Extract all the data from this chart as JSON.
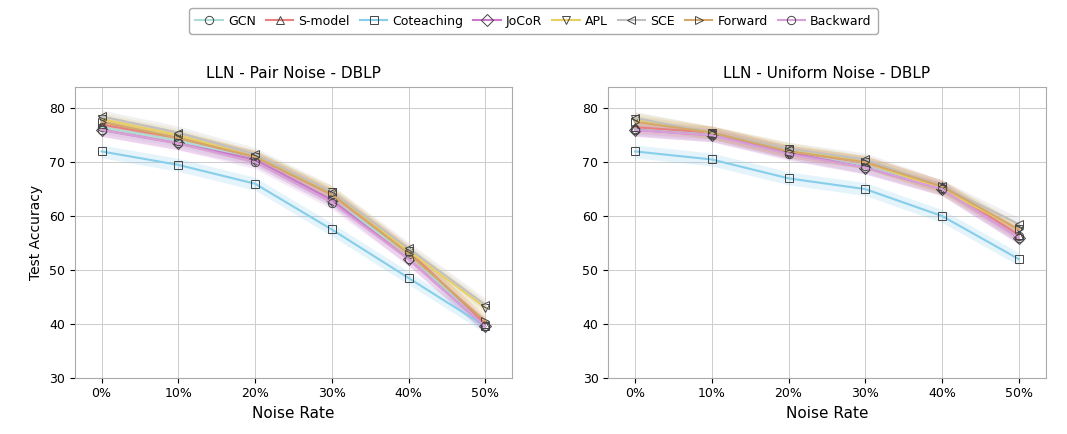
{
  "title_left": "LLN - Pair Noise - DBLP",
  "title_right": "LLN - Uniform Noise - DBLP",
  "xlabel": "Noise Rate",
  "ylabel": "Test Accuracy",
  "x_ticks": [
    "0%",
    "10%",
    "20%",
    "30%",
    "40%",
    "50%"
  ],
  "x_vals": [
    0,
    1,
    2,
    3,
    4,
    5
  ],
  "ylim": [
    30,
    84
  ],
  "yticks": [
    30,
    40,
    50,
    60,
    70,
    80
  ],
  "series": [
    {
      "name": "GCN",
      "color": "#aaded4",
      "marker": "o",
      "left": [
        76.5,
        74.0,
        70.5,
        63.0,
        53.0,
        39.5
      ],
      "right": [
        76.2,
        75.2,
        71.8,
        69.2,
        65.2,
        56.2
      ]
    },
    {
      "name": "S-model",
      "color": "#e88080",
      "marker": "^",
      "left": [
        77.0,
        74.5,
        71.0,
        64.0,
        53.5,
        40.0
      ],
      "right": [
        76.5,
        75.5,
        72.0,
        70.0,
        65.5,
        56.5
      ]
    },
    {
      "name": "Coteaching",
      "color": "#87ceeb",
      "marker": "s",
      "left": [
        72.0,
        69.5,
        66.0,
        57.5,
        48.5,
        39.5
      ],
      "right": [
        72.0,
        70.5,
        67.0,
        65.0,
        60.0,
        52.0
      ]
    },
    {
      "name": "JoCoR",
      "color": "#cc77cc",
      "marker": "D",
      "left": [
        76.0,
        73.5,
        70.5,
        63.0,
        52.0,
        39.5
      ],
      "right": [
        76.0,
        75.0,
        71.8,
        69.0,
        65.0,
        56.0
      ]
    },
    {
      "name": "APL",
      "color": "#e8d060",
      "marker": "v",
      "left": [
        78.0,
        75.0,
        71.0,
        64.5,
        53.5,
        43.0
      ],
      "right": [
        78.0,
        75.5,
        72.5,
        70.0,
        65.0,
        57.5
      ]
    },
    {
      "name": "SCE",
      "color": "#c0c0c0",
      "marker": "<",
      "left": [
        78.5,
        75.5,
        71.5,
        64.5,
        54.0,
        43.5
      ],
      "right": [
        78.2,
        75.5,
        72.5,
        70.5,
        65.5,
        58.5
      ]
    },
    {
      "name": "Forward",
      "color": "#d4a868",
      "marker": ">",
      "left": [
        77.5,
        74.5,
        71.0,
        64.0,
        53.0,
        40.5
      ],
      "right": [
        77.5,
        75.5,
        72.0,
        70.0,
        65.5,
        57.5
      ]
    },
    {
      "name": "Backward",
      "color": "#d8a0d8",
      "marker": "o",
      "left": [
        76.0,
        73.5,
        70.0,
        62.5,
        52.0,
        39.5
      ],
      "right": [
        76.0,
        75.0,
        71.5,
        69.0,
        65.0,
        56.0
      ]
    }
  ],
  "background_color": "#ffffff",
  "grid_color": "#cccccc",
  "legend_ncol": 8,
  "figsize": [
    10.67,
    4.34
  ],
  "dpi": 100
}
